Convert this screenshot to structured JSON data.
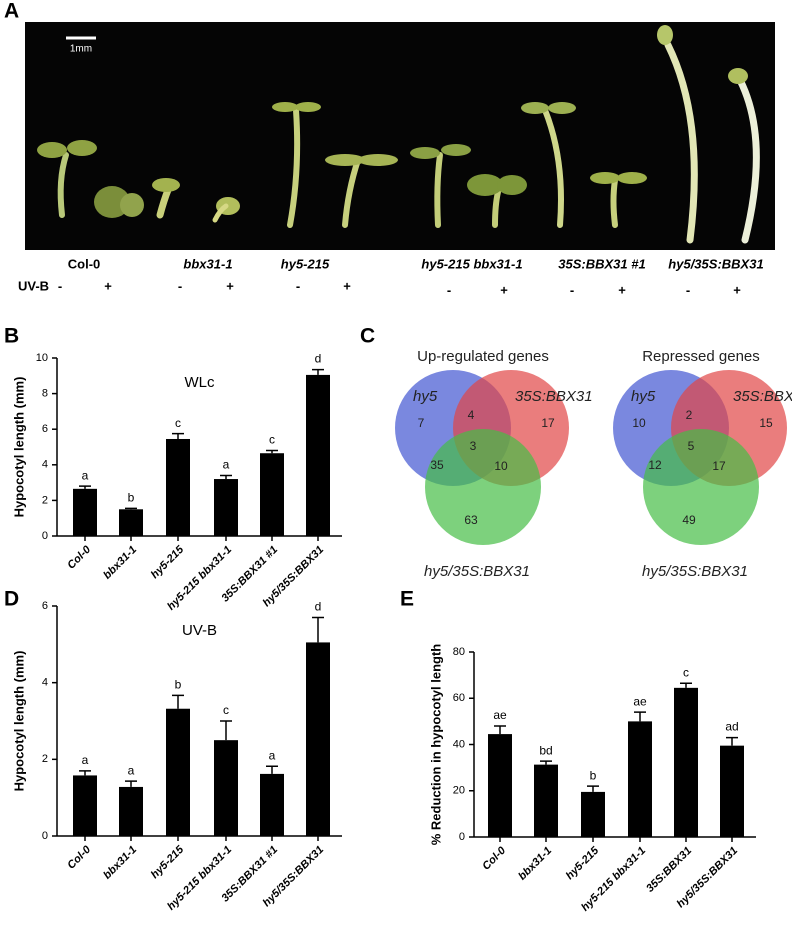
{
  "photo": {
    "panel": "A",
    "scale_bar": "1mm",
    "treatment_label": "UV-B",
    "genotypes": [
      "Col-0",
      "bbx31-1",
      "hy5-215",
      "hy5-215 bbx31-1",
      "35S:BBX31 #1",
      "hy5/35S:BBX31"
    ],
    "treatments": [
      "-",
      "+"
    ]
  },
  "venn": {
    "panel": "C",
    "set_labels": [
      "hy5",
      "35S:BBX31",
      "hy5/35S:BBX31"
    ],
    "diagrams": [
      {
        "title": "Up-regulated genes",
        "counts": [
          7,
          4,
          17,
          3,
          35,
          10,
          63
        ]
      },
      {
        "title": "Repressed genes",
        "counts": [
          10,
          2,
          15,
          5,
          12,
          17,
          49
        ]
      }
    ]
  },
  "chart_data": [
    {
      "type": "bar",
      "panel": "B",
      "title": "WLc",
      "ylabel": "Hypocotyl length (mm)",
      "categories": [
        "Col-0",
        "bbx31-1",
        "hy5-215",
        "hy5-215 bbx31-1",
        "35S:BBX31 #1",
        "hy5/35S:BBX31"
      ],
      "values": [
        2.65,
        1.5,
        5.45,
        3.2,
        4.65,
        9.05
      ],
      "errors": [
        0.15,
        0.05,
        0.3,
        0.2,
        0.15,
        0.3
      ],
      "annotations": [
        "a",
        "b",
        "c",
        "a",
        "c",
        "d"
      ],
      "color": "#000000",
      "ylim": [
        0,
        10
      ],
      "yticks": [
        0,
        2,
        4,
        6,
        8,
        10
      ]
    },
    {
      "type": "bar",
      "panel": "D",
      "title": "UV-B",
      "ylabel": "Hypocotyl length (mm)",
      "categories": [
        "Col-0",
        "bbx31-1",
        "hy5-215",
        "hy5-215 bbx31-1",
        "35S:BBX31 #1",
        "hy5/35S:BBX31"
      ],
      "values": [
        1.58,
        1.28,
        3.32,
        2.5,
        1.62,
        5.05
      ],
      "errors": [
        0.12,
        0.15,
        0.35,
        0.5,
        0.2,
        0.65
      ],
      "annotations": [
        "a",
        "a",
        "b",
        "c",
        "a",
        "d"
      ],
      "color": "#000000",
      "ylim": [
        0,
        6
      ],
      "yticks": [
        0,
        2,
        4,
        6
      ]
    },
    {
      "type": "bar",
      "panel": "E",
      "ylabel": "% Reduction in hypocotyl length",
      "categories": [
        "Col-0",
        "bbx31-1",
        "hy5-215",
        "hy5-215 bbx31-1",
        "35S:BBX31",
        "hy5/35S:BBX31"
      ],
      "values": [
        44.5,
        31.3,
        19.5,
        50,
        64.5,
        39.5
      ],
      "errors": [
        3.5,
        1.5,
        2.5,
        4,
        2,
        3.5
      ],
      "annotations": [
        "ae",
        "bd",
        "b",
        "ae",
        "c",
        "ad"
      ],
      "color": "#000000",
      "ylim": [
        0,
        80
      ],
      "yticks": [
        0,
        20,
        40,
        60,
        80
      ]
    }
  ]
}
